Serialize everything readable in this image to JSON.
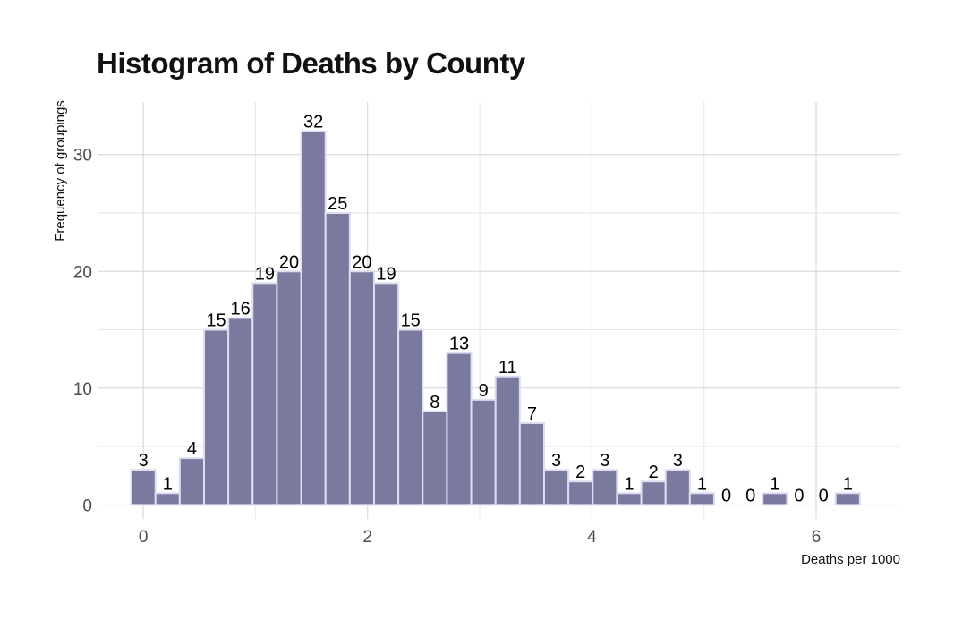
{
  "chart_data": {
    "type": "bar",
    "title": "Histogram of Deaths by County",
    "xlabel": "Deaths per 1000",
    "ylabel": "Frequency of groupings",
    "bin_width": 0.2166,
    "bin_centers": [
      0.0,
      0.2166,
      0.4332,
      0.6498,
      0.8664,
      1.083,
      1.2996,
      1.5162,
      1.7328,
      1.9494,
      2.166,
      2.3826,
      2.5992,
      2.8158,
      3.0324,
      3.249,
      3.4656,
      3.6822,
      3.8988,
      4.1154,
      4.332,
      4.5486,
      4.7652,
      4.9818,
      5.1984,
      5.415,
      5.6316,
      5.8482,
      6.0648,
      6.2814
    ],
    "values": [
      3,
      1,
      4,
      15,
      16,
      19,
      20,
      32,
      25,
      20,
      19,
      15,
      8,
      13,
      9,
      11,
      7,
      3,
      2,
      3,
      1,
      2,
      3,
      1,
      0,
      0,
      1,
      0,
      0,
      1
    ],
    "xlim": [
      -0.4,
      6.75
    ],
    "ylim": [
      -1.2,
      34.5
    ],
    "x_ticks": [
      0,
      2,
      4,
      6
    ],
    "x_tick_labels": [
      "0",
      "2",
      "4",
      "6"
    ],
    "y_ticks": [
      0,
      10,
      20,
      30
    ],
    "y_tick_labels": [
      "0",
      "10",
      "20",
      "30"
    ],
    "grid": true,
    "colors": {
      "bar_fill": "#7a7a9e",
      "bar_stroke": "#ddddf0",
      "grid_major": "#d2d2d2",
      "grid_minor": "#e6e6e6"
    }
  }
}
